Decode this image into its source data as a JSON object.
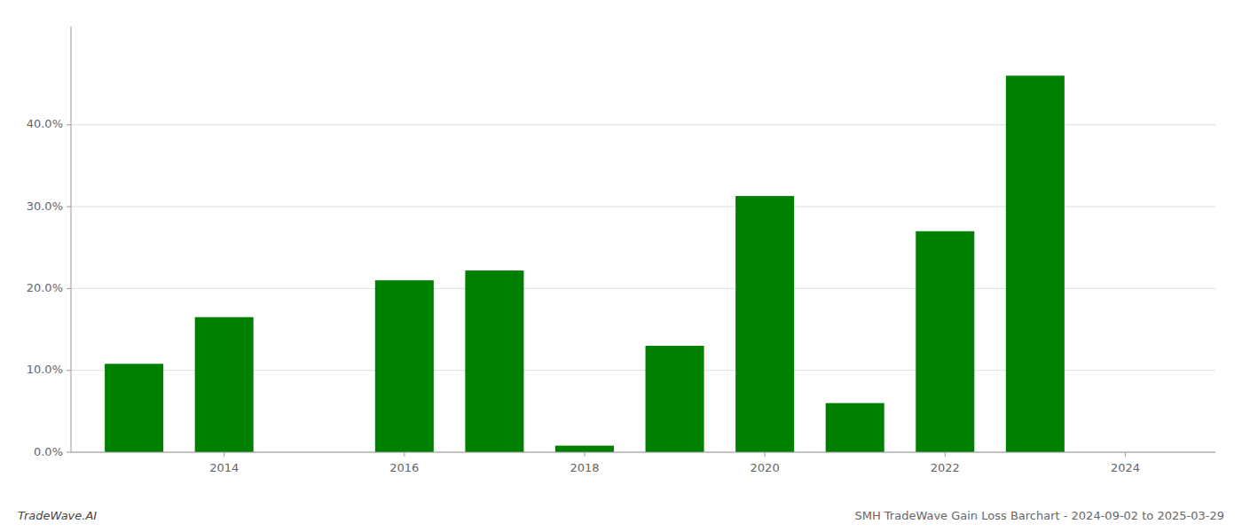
{
  "chart_data": {
    "type": "bar",
    "title": "SMH TradeWave Gain Loss Barchart - 2024-09-02 to 2025-03-29",
    "annotations": [
      "TradeWave.AI"
    ],
    "x": [
      2013,
      2014,
      2016,
      2017,
      2018,
      2019,
      2020,
      2021,
      2022,
      2023
    ],
    "values": [
      0.108,
      0.165,
      0.21,
      0.222,
      0.008,
      0.13,
      0.313,
      0.06,
      0.27,
      0.46
    ],
    "color": "#008000",
    "xlim": [
      2012.3,
      2025.0
    ],
    "xticks": [
      2014,
      2016,
      2018,
      2020,
      2022,
      2024
    ],
    "ylim": [
      0.0,
      0.52
    ],
    "yticks": [
      {
        "value": 0.0,
        "label": "0.0%"
      },
      {
        "value": 0.1,
        "label": "10.0%"
      },
      {
        "value": 0.2,
        "label": "20.0%"
      },
      {
        "value": 0.3,
        "label": "30.0%"
      },
      {
        "value": 0.4,
        "label": "40.0%"
      }
    ],
    "grid": true
  }
}
